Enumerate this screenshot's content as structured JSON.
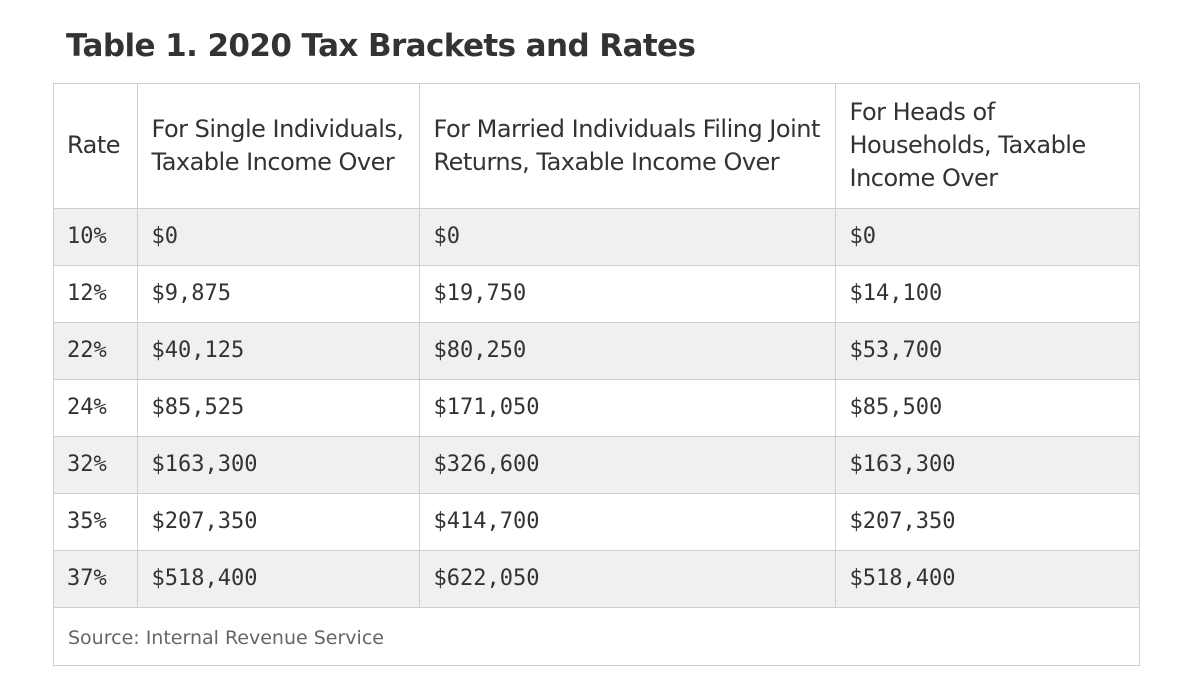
{
  "chart_data": {
    "type": "table",
    "title": "Table 1. 2020 Tax Brackets and Rates",
    "columns": [
      "Rate",
      "For Single Individuals, Taxable Income Over",
      "For Married Individuals Filing Joint Returns, Taxable Income Over",
      "For Heads of Households, Taxable Income Over"
    ],
    "rows": [
      [
        "10%",
        "$0",
        "$0",
        "$0"
      ],
      [
        "12%",
        "$9,875",
        "$19,750",
        "$14,100"
      ],
      [
        "22%",
        "$40,125",
        "$80,250",
        "$53,700"
      ],
      [
        "24%",
        "$85,525",
        "$171,050",
        "$85,500"
      ],
      [
        "32%",
        "$163,300",
        "$326,600",
        "$163,300"
      ],
      [
        "35%",
        "$207,350",
        "$414,700",
        "$207,350"
      ],
      [
        "37%",
        "$518,400",
        "$622,050",
        "$518,400"
      ]
    ],
    "source": "Source: Internal Revenue Service"
  }
}
